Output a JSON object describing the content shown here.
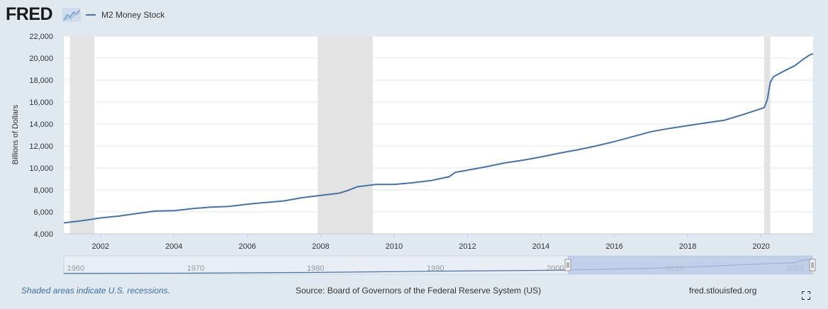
{
  "header": {
    "logo_text": "FRED",
    "legend_label": "M2 Money Stock"
  },
  "footer": {
    "recession_note": "Shaded areas indicate U.S. recessions.",
    "source": "Source: Board of Governors of the Federal Reserve System (US)",
    "site": "fred.stlouisfed.org"
  },
  "colors": {
    "series": "#4572a7",
    "recession": "#e3e3e3",
    "background": "#e1e9f0",
    "plot": "#ffffff",
    "navigator_selection": "#b4c6e6"
  },
  "chart_data": {
    "type": "line",
    "title": "",
    "xlabel": "",
    "ylabel": "Billions of Dollars",
    "ylim": [
      4000,
      22000
    ],
    "xlim": [
      "2001-01",
      "2021-06"
    ],
    "y_ticks": [
      "4,000",
      "6,000",
      "8,000",
      "10,000",
      "12,000",
      "14,000",
      "16,000",
      "18,000",
      "20,000",
      "22,000"
    ],
    "y_tick_values": [
      4000,
      6000,
      8000,
      10000,
      12000,
      14000,
      16000,
      18000,
      20000,
      22000
    ],
    "x_ticks": [
      "2002",
      "2004",
      "2006",
      "2008",
      "2010",
      "2012",
      "2014",
      "2016",
      "2018",
      "2020"
    ],
    "grid": true,
    "recessions": [
      {
        "start": "2001-03",
        "end": "2001-11"
      },
      {
        "start": "2007-12",
        "end": "2009-06"
      },
      {
        "start": "2020-02",
        "end": "2020-04"
      }
    ],
    "series": [
      {
        "name": "M2 Money Stock",
        "x": [
          "2001-01",
          "2001-07",
          "2002-01",
          "2002-07",
          "2003-01",
          "2003-07",
          "2004-01",
          "2004-07",
          "2005-01",
          "2005-07",
          "2006-01",
          "2006-07",
          "2007-01",
          "2007-07",
          "2008-01",
          "2008-07",
          "2008-10",
          "2009-01",
          "2009-07",
          "2010-01",
          "2010-07",
          "2011-01",
          "2011-07",
          "2011-09",
          "2012-01",
          "2012-07",
          "2013-01",
          "2013-07",
          "2014-01",
          "2014-07",
          "2015-01",
          "2015-07",
          "2016-01",
          "2016-07",
          "2017-01",
          "2017-07",
          "2018-01",
          "2018-07",
          "2019-01",
          "2019-07",
          "2020-01",
          "2020-02",
          "2020-03",
          "2020-04",
          "2020-05",
          "2020-06",
          "2020-09",
          "2020-12",
          "2021-03",
          "2021-05",
          "2021-06"
        ],
        "values": [
          5000,
          5200,
          5450,
          5620,
          5850,
          6080,
          6110,
          6300,
          6430,
          6500,
          6700,
          6850,
          7000,
          7300,
          7500,
          7700,
          7960,
          8300,
          8500,
          8500,
          8650,
          8850,
          9200,
          9600,
          9800,
          10100,
          10450,
          10700,
          11000,
          11350,
          11650,
          12000,
          12400,
          12850,
          13300,
          13600,
          13850,
          14100,
          14350,
          14850,
          15400,
          15500,
          16200,
          17800,
          18300,
          18450,
          18900,
          19300,
          19950,
          20300,
          20400
        ]
      }
    ]
  },
  "navigator": {
    "tick_labels": [
      "1960",
      "1970",
      "1980",
      "1990",
      "2000",
      "2010",
      "2020"
    ]
  }
}
